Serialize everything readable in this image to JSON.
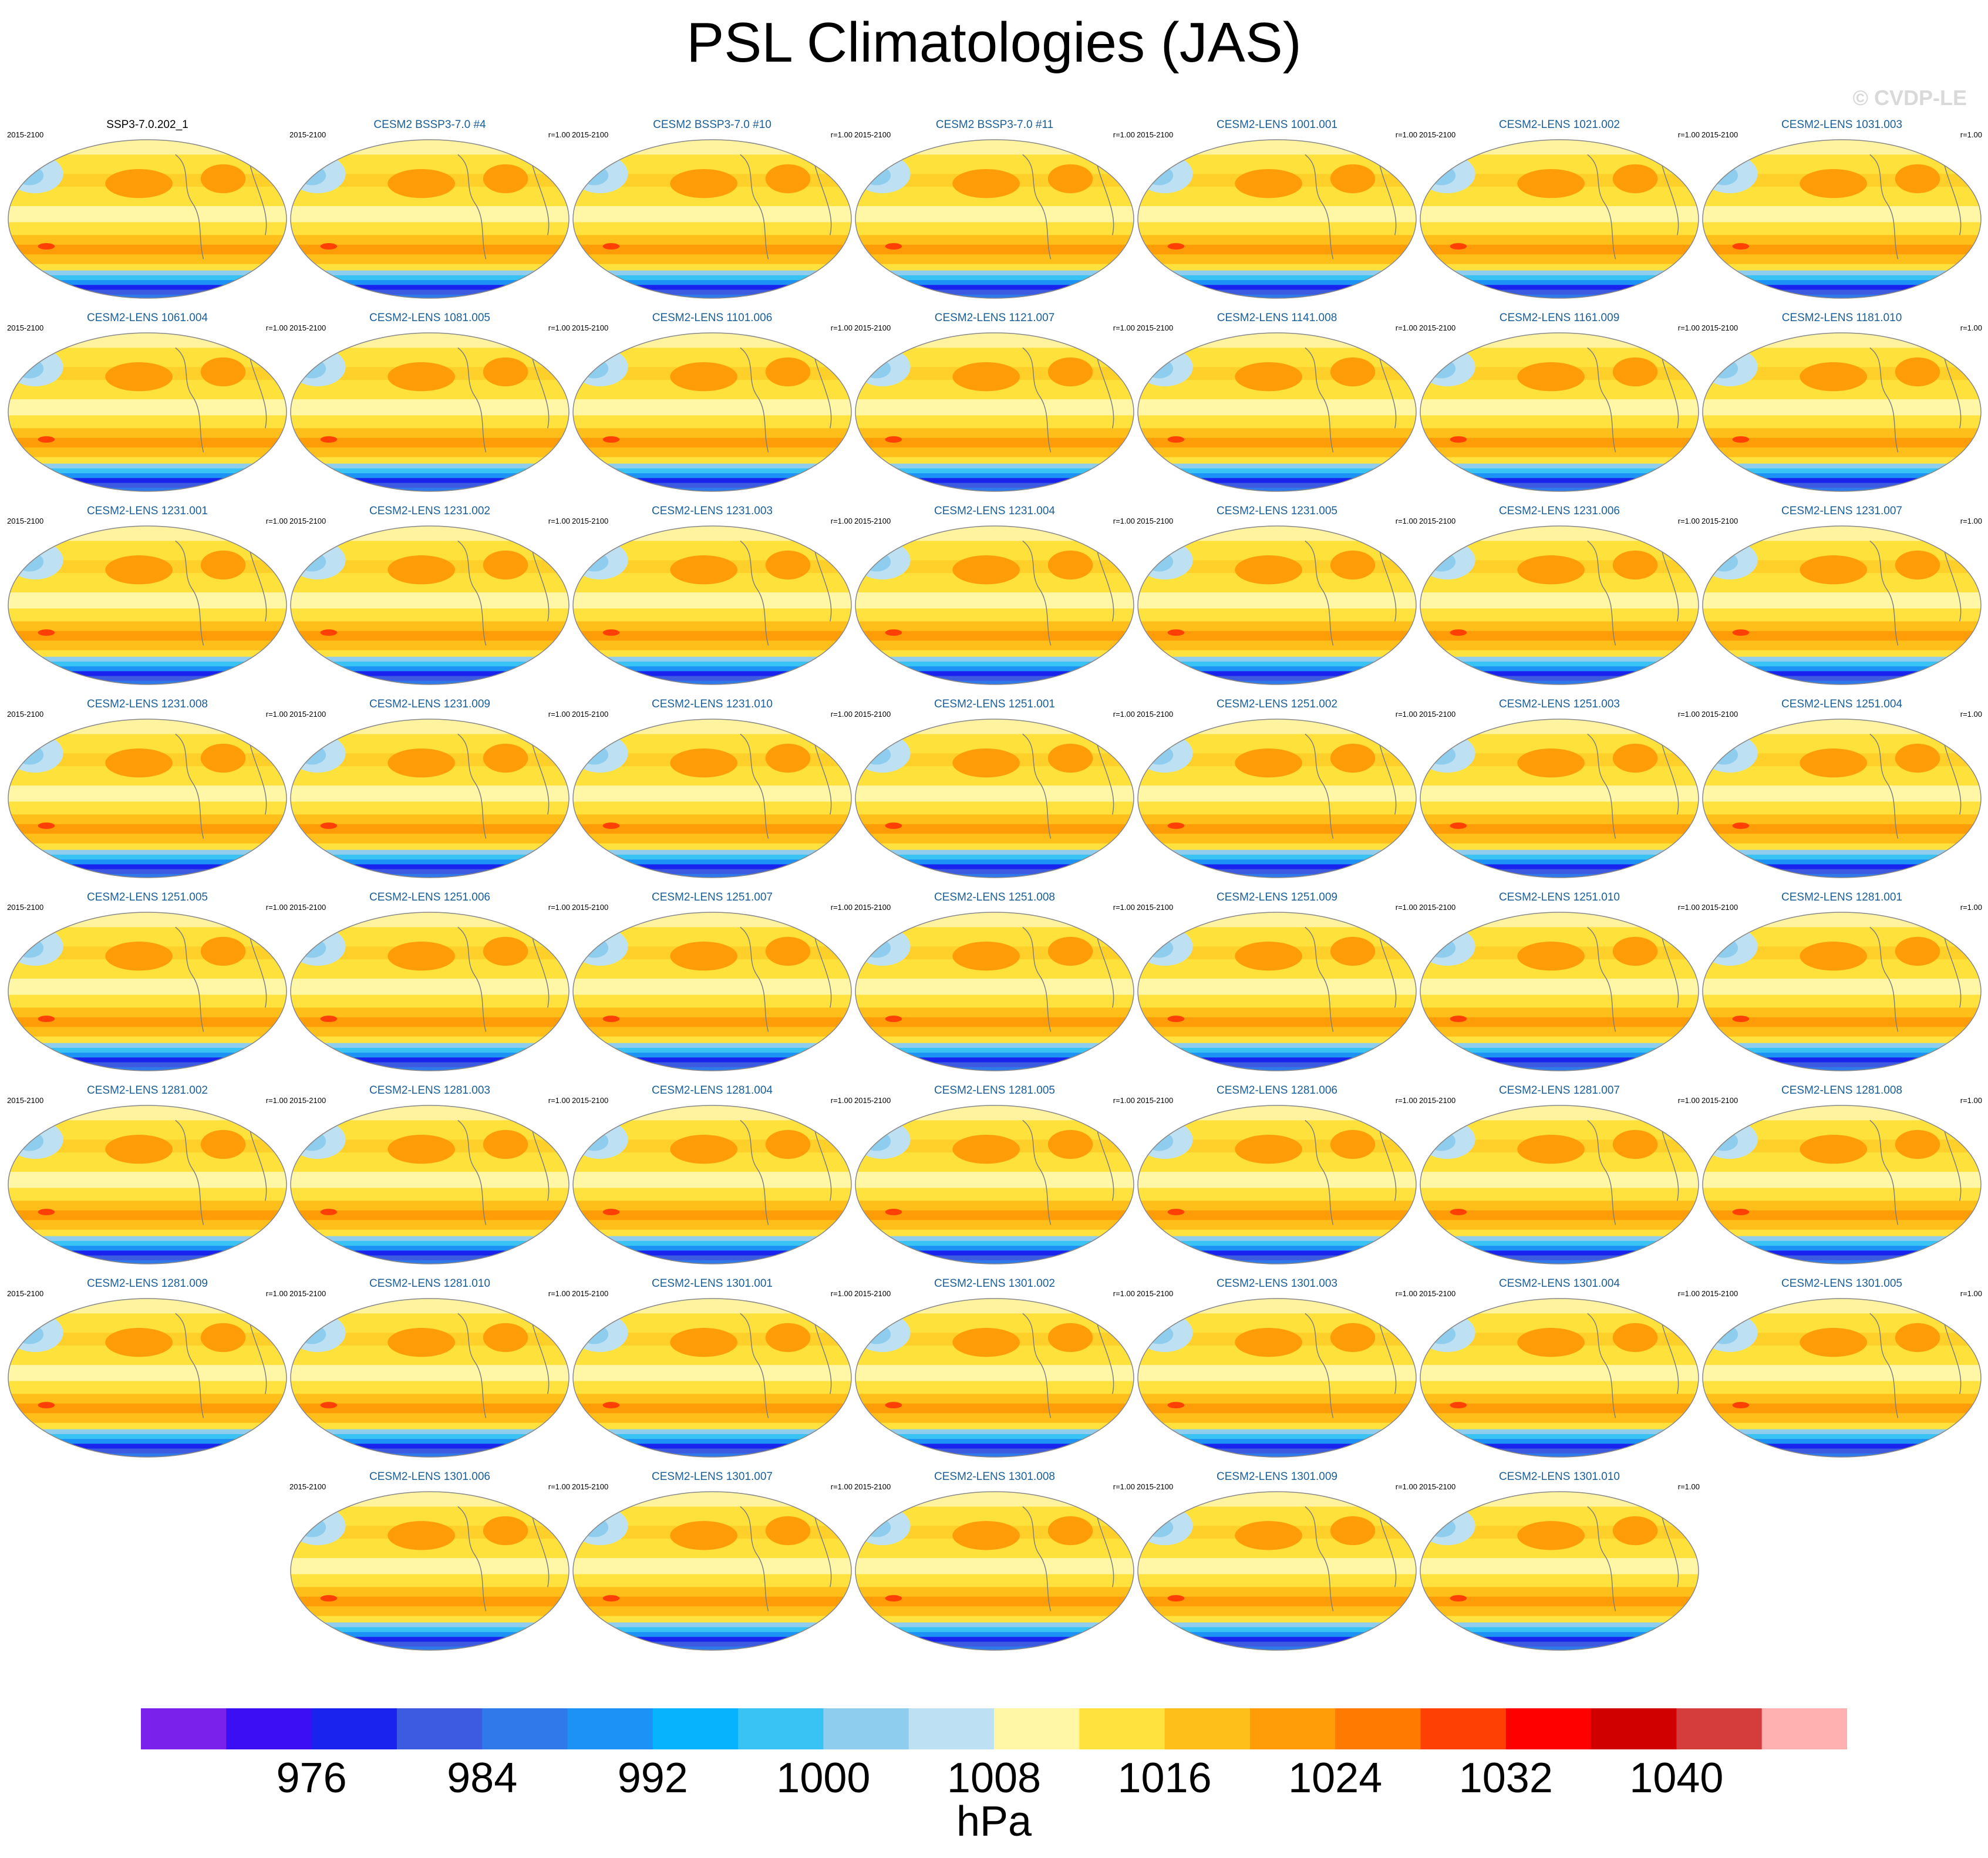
{
  "figure": {
    "title": "PSL Climatologies (JAS)",
    "watermark": "© CVDP-LE",
    "units": "hPa",
    "colors": {
      "panel_title": "#1a5e9a",
      "reference_title": "#000000",
      "coast": "#7f7f7f",
      "outline": "#888888"
    }
  },
  "panels": [
    {
      "title": "SSP3-7.0.202_1",
      "years": "2015-2100",
      "corr": "",
      "reference": true
    },
    {
      "title": "CESM2 BSSP3-7.0 #4",
      "years": "2015-2100",
      "corr": "r=1.00"
    },
    {
      "title": "CESM2 BSSP3-7.0 #10",
      "years": "2015-2100",
      "corr": "r=1.00"
    },
    {
      "title": "CESM2 BSSP3-7.0 #11",
      "years": "2015-2100",
      "corr": "r=1.00"
    },
    {
      "title": "CESM2-LENS 1001.001",
      "years": "2015-2100",
      "corr": "r=1.00"
    },
    {
      "title": "CESM2-LENS 1021.002",
      "years": "2015-2100",
      "corr": "r=1.00"
    },
    {
      "title": "CESM2-LENS 1031.003",
      "years": "2015-2100",
      "corr": "r=1.00"
    },
    {
      "title": "CESM2-LENS 1061.004",
      "years": "2015-2100",
      "corr": "r=1.00"
    },
    {
      "title": "CESM2-LENS 1081.005",
      "years": "2015-2100",
      "corr": "r=1.00"
    },
    {
      "title": "CESM2-LENS 1101.006",
      "years": "2015-2100",
      "corr": "r=1.00"
    },
    {
      "title": "CESM2-LENS 1121.007",
      "years": "2015-2100",
      "corr": "r=1.00"
    },
    {
      "title": "CESM2-LENS 1141.008",
      "years": "2015-2100",
      "corr": "r=1.00"
    },
    {
      "title": "CESM2-LENS 1161.009",
      "years": "2015-2100",
      "corr": "r=1.00"
    },
    {
      "title": "CESM2-LENS 1181.010",
      "years": "2015-2100",
      "corr": "r=1.00"
    },
    {
      "title": "CESM2-LENS 1231.001",
      "years": "2015-2100",
      "corr": "r=1.00"
    },
    {
      "title": "CESM2-LENS 1231.002",
      "years": "2015-2100",
      "corr": "r=1.00"
    },
    {
      "title": "CESM2-LENS 1231.003",
      "years": "2015-2100",
      "corr": "r=1.00"
    },
    {
      "title": "CESM2-LENS 1231.004",
      "years": "2015-2100",
      "corr": "r=1.00"
    },
    {
      "title": "CESM2-LENS 1231.005",
      "years": "2015-2100",
      "corr": "r=1.00"
    },
    {
      "title": "CESM2-LENS 1231.006",
      "years": "2015-2100",
      "corr": "r=1.00"
    },
    {
      "title": "CESM2-LENS 1231.007",
      "years": "2015-2100",
      "corr": "r=1.00"
    },
    {
      "title": "CESM2-LENS 1231.008",
      "years": "2015-2100",
      "corr": "r=1.00"
    },
    {
      "title": "CESM2-LENS 1231.009",
      "years": "2015-2100",
      "corr": "r=1.00"
    },
    {
      "title": "CESM2-LENS 1231.010",
      "years": "2015-2100",
      "corr": "r=1.00"
    },
    {
      "title": "CESM2-LENS 1251.001",
      "years": "2015-2100",
      "corr": "r=1.00"
    },
    {
      "title": "CESM2-LENS 1251.002",
      "years": "2015-2100",
      "corr": "r=1.00"
    },
    {
      "title": "CESM2-LENS 1251.003",
      "years": "2015-2100",
      "corr": "r=1.00"
    },
    {
      "title": "CESM2-LENS 1251.004",
      "years": "2015-2100",
      "corr": "r=1.00"
    },
    {
      "title": "CESM2-LENS 1251.005",
      "years": "2015-2100",
      "corr": "r=1.00"
    },
    {
      "title": "CESM2-LENS 1251.006",
      "years": "2015-2100",
      "corr": "r=1.00"
    },
    {
      "title": "CESM2-LENS 1251.007",
      "years": "2015-2100",
      "corr": "r=1.00"
    },
    {
      "title": "CESM2-LENS 1251.008",
      "years": "2015-2100",
      "corr": "r=1.00"
    },
    {
      "title": "CESM2-LENS 1251.009",
      "years": "2015-2100",
      "corr": "r=1.00"
    },
    {
      "title": "CESM2-LENS 1251.010",
      "years": "2015-2100",
      "corr": "r=1.00"
    },
    {
      "title": "CESM2-LENS 1281.001",
      "years": "2015-2100",
      "corr": "r=1.00"
    },
    {
      "title": "CESM2-LENS 1281.002",
      "years": "2015-2100",
      "corr": "r=1.00"
    },
    {
      "title": "CESM2-LENS 1281.003",
      "years": "2015-2100",
      "corr": "r=1.00"
    },
    {
      "title": "CESM2-LENS 1281.004",
      "years": "2015-2100",
      "corr": "r=1.00"
    },
    {
      "title": "CESM2-LENS 1281.005",
      "years": "2015-2100",
      "corr": "r=1.00"
    },
    {
      "title": "CESM2-LENS 1281.006",
      "years": "2015-2100",
      "corr": "r=1.00"
    },
    {
      "title": "CESM2-LENS 1281.007",
      "years": "2015-2100",
      "corr": "r=1.00"
    },
    {
      "title": "CESM2-LENS 1281.008",
      "years": "2015-2100",
      "corr": "r=1.00"
    },
    {
      "title": "CESM2-LENS 1281.009",
      "years": "2015-2100",
      "corr": "r=1.00"
    },
    {
      "title": "CESM2-LENS 1281.010",
      "years": "2015-2100",
      "corr": "r=1.00"
    },
    {
      "title": "CESM2-LENS 1301.001",
      "years": "2015-2100",
      "corr": "r=1.00"
    },
    {
      "title": "CESM2-LENS 1301.002",
      "years": "2015-2100",
      "corr": "r=1.00"
    },
    {
      "title": "CESM2-LENS 1301.003",
      "years": "2015-2100",
      "corr": "r=1.00"
    },
    {
      "title": "CESM2-LENS 1301.004",
      "years": "2015-2100",
      "corr": "r=1.00"
    },
    {
      "title": "CESM2-LENS 1301.005",
      "years": "2015-2100",
      "corr": "r=1.00"
    },
    {
      "title": "CESM2-LENS 1301.006",
      "years": "2015-2100",
      "corr": "r=1.00"
    },
    {
      "title": "CESM2-LENS 1301.007",
      "years": "2015-2100",
      "corr": "r=1.00"
    },
    {
      "title": "CESM2-LENS 1301.008",
      "years": "2015-2100",
      "corr": "r=1.00"
    },
    {
      "title": "CESM2-LENS 1301.009",
      "years": "2015-2100",
      "corr": "r=1.00"
    },
    {
      "title": "CESM2-LENS 1301.010",
      "years": "2015-2100",
      "corr": "r=1.00"
    }
  ],
  "colorbar": {
    "colors": [
      "#7b21ec",
      "#3b0ef3",
      "#1a23ee",
      "#3d5be0",
      "#2f79ea",
      "#1d92f6",
      "#07b3fc",
      "#39c3f4",
      "#8fcdee",
      "#bde0f3",
      "#fff6a6",
      "#ffe23e",
      "#ffbf1a",
      "#ff9d09",
      "#ff7a00",
      "#ff4004",
      "#ff0000",
      "#d00000",
      "#d53c3c",
      "#ffb0b0"
    ],
    "tick_labels": [
      "976",
      "984",
      "992",
      "1000",
      "1008",
      "1016",
      "1024",
      "1032",
      "1040"
    ]
  }
}
